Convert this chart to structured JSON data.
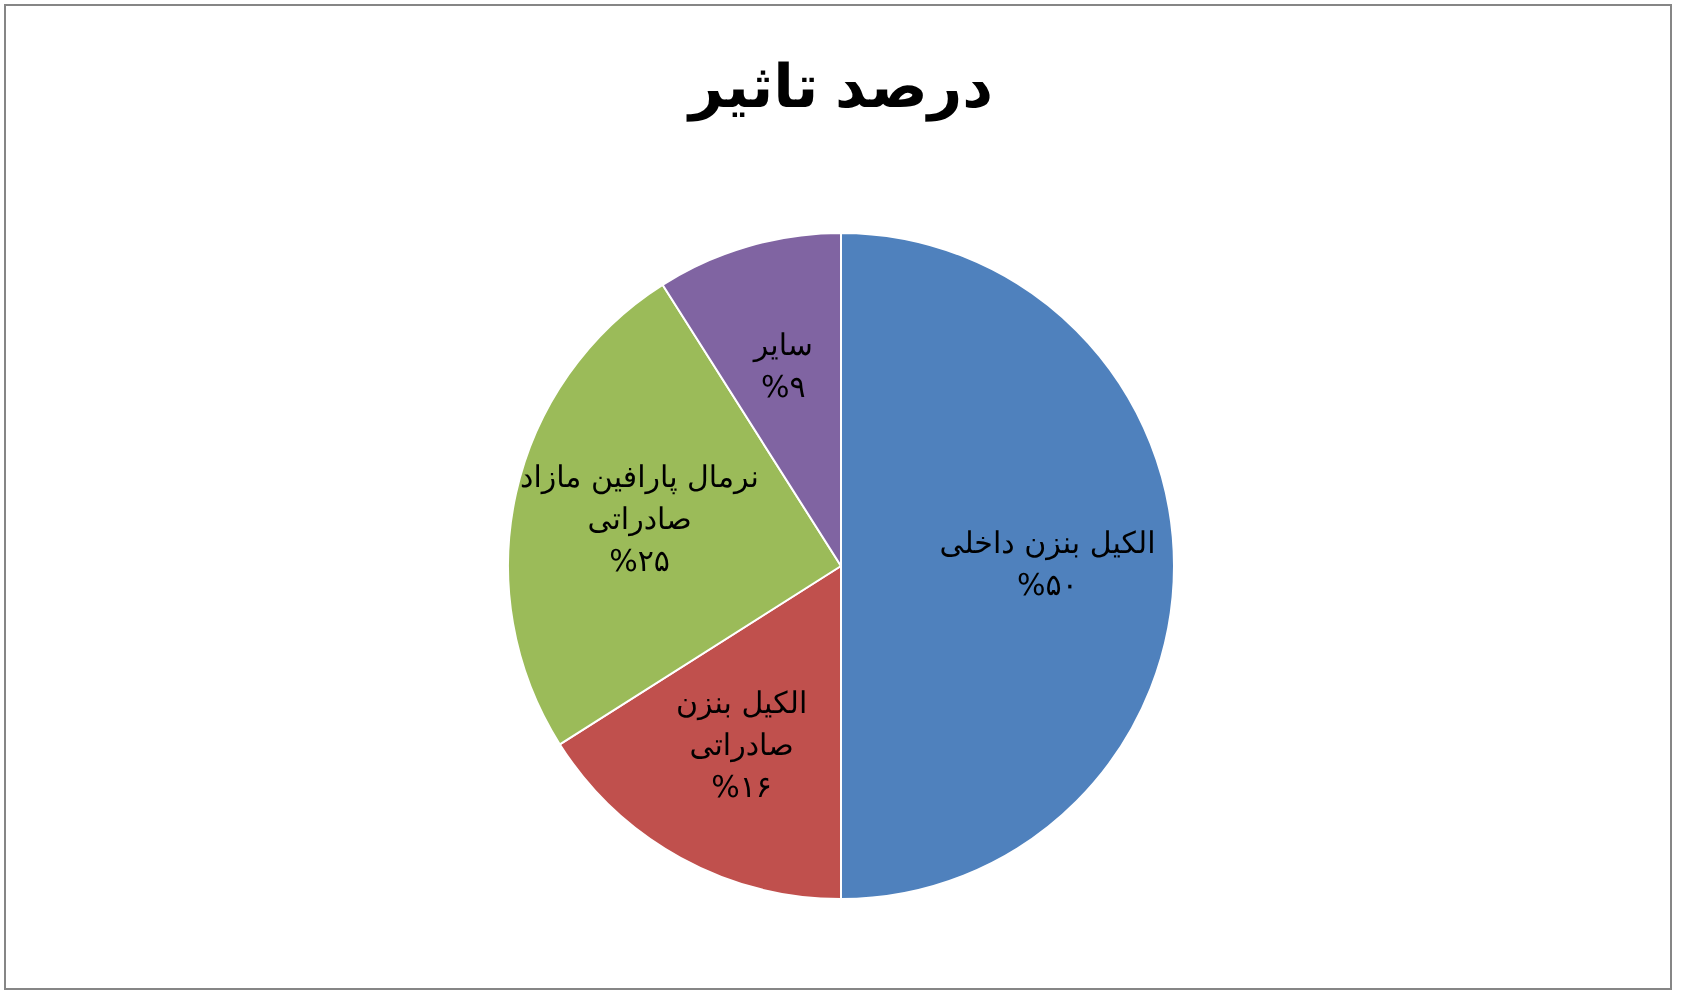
{
  "chart_data": {
    "type": "pie",
    "title": "درصد تاثیر",
    "categories": [
      "الکیل بنزن داخلی",
      "الکیل بنزن صادراتی",
      "نرمال پارافین مازاد صادراتی",
      "سایر"
    ],
    "values": [
      50,
      16,
      25,
      9
    ],
    "colors": [
      "#4f81bd",
      "#c0504d",
      "#9bbb59",
      "#8064a2"
    ],
    "value_labels": [
      "%۵۰",
      "%۱۶",
      "%۲۵",
      "%۹"
    ]
  }
}
